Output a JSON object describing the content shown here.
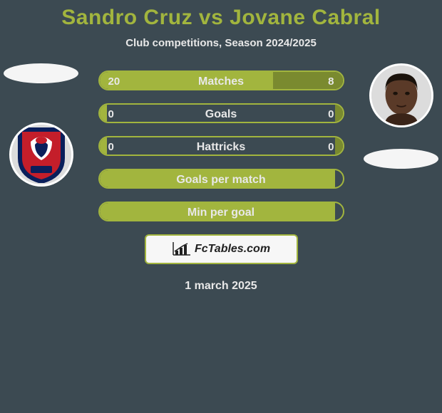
{
  "title": "Sandro Cruz vs Jovane Cabral",
  "subtitle": "Club competitions, Season 2024/2025",
  "date": "1 march 2025",
  "colors": {
    "background": "#3c4a52",
    "title": "#a2b53e",
    "text_light": "#e8e8e8",
    "bar_border": "#a2b53e",
    "bar_fill": "#a2b53e",
    "bar_alt_fill": "#7a8a2f",
    "ellipse": "#f5f5f5",
    "avatar_bg": "#dcdcdc",
    "branding_bg": "#f7f7f7",
    "branding_border": "#a2b53e",
    "branding_text": "#222222",
    "shield_outer": "#0a1f5b",
    "shield_inner": "#c41e2a",
    "shield_white": "#ffffff",
    "skin": "#5a3a28",
    "skin_dark": "#3a2418"
  },
  "branding": {
    "text": "FcTables.com"
  },
  "stats": [
    {
      "label": "Matches",
      "left_val": "20",
      "right_val": "8",
      "left_pct": 71.4,
      "right_pct": 28.6,
      "show_vals": true
    },
    {
      "label": "Goals",
      "left_val": "0",
      "right_val": "0",
      "left_pct": 3,
      "right_pct": 3,
      "show_vals": true
    },
    {
      "label": "Hattricks",
      "left_val": "0",
      "right_val": "0",
      "left_pct": 3,
      "right_pct": 3,
      "show_vals": true
    },
    {
      "label": "Goals per match",
      "left_val": "",
      "right_val": "",
      "left_pct": 97,
      "right_pct": 0,
      "show_vals": false
    },
    {
      "label": "Min per goal",
      "left_val": "",
      "right_val": "",
      "left_pct": 97,
      "right_pct": 0,
      "show_vals": false
    }
  ]
}
